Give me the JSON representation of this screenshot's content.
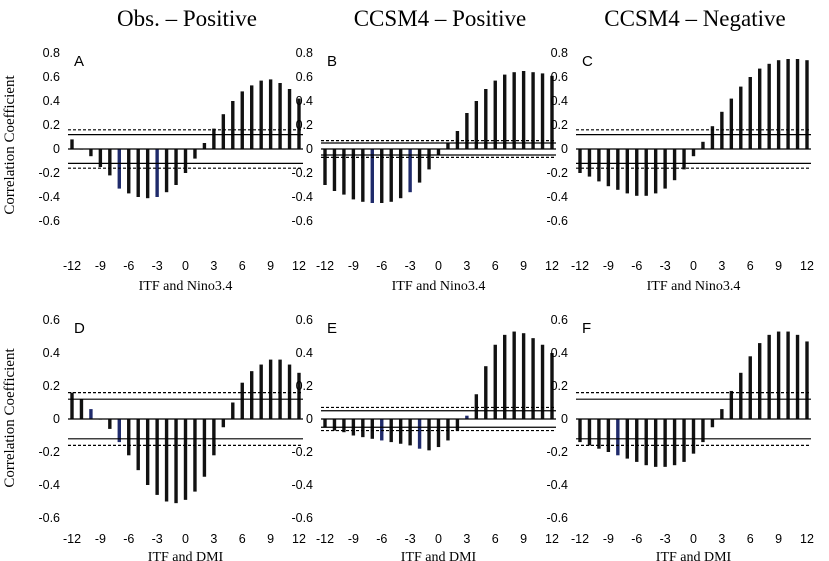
{
  "colors": {
    "bar": "#111111",
    "bar_highlight": "#1f2a6b",
    "line": "#000000"
  },
  "column_titles": [
    "Obs. – Positive",
    "CCSM4 – Positive",
    "CCSM4 – Negative"
  ],
  "ylabel": "Correlation Coefficient",
  "chart_data": [
    {
      "panel": "A",
      "type": "bar",
      "row": 0,
      "col": 0,
      "xlabel": "ITF and Nino3.4",
      "x": [
        -12,
        -11,
        -10,
        -9,
        -8,
        -7,
        -6,
        -5,
        -4,
        -3,
        -2,
        -1,
        0,
        1,
        2,
        3,
        4,
        5,
        6,
        7,
        8,
        9,
        10,
        11,
        12
      ],
      "values": [
        0.08,
        0.0,
        -0.06,
        -0.15,
        -0.22,
        -0.33,
        -0.37,
        -0.4,
        -0.41,
        -0.4,
        -0.36,
        -0.3,
        -0.2,
        -0.08,
        0.05,
        0.17,
        0.29,
        0.4,
        0.48,
        0.53,
        0.57,
        0.58,
        0.55,
        0.5,
        0.42
      ],
      "highlight_x": [
        -7,
        -3
      ],
      "ylim": [
        -0.8,
        0.8
      ],
      "yticks": [
        -0.6,
        -0.4,
        -0.2,
        0,
        0.2,
        0.4,
        0.6,
        0.8
      ],
      "yticklabels": [
        "-0.6",
        "-0.4",
        "-0.2",
        "0",
        "0.2",
        "0.4",
        "0.6",
        "0.8"
      ],
      "xticks": [
        -12,
        -9,
        -6,
        -3,
        0,
        3,
        6,
        9,
        12
      ],
      "xticklabels": [
        "-12",
        "-9",
        "-6",
        "-3",
        "0",
        "3",
        "6",
        "9",
        "12"
      ],
      "solid_thresholds": [
        0.12,
        -0.12
      ],
      "dashed_thresholds": [
        0.16,
        -0.16
      ]
    },
    {
      "panel": "B",
      "type": "bar",
      "row": 0,
      "col": 1,
      "xlabel": "ITF and Nino3.4",
      "x": [
        -12,
        -11,
        -10,
        -9,
        -8,
        -7,
        -6,
        -5,
        -4,
        -3,
        -2,
        -1,
        0,
        1,
        2,
        3,
        4,
        5,
        6,
        7,
        8,
        9,
        10,
        11,
        12
      ],
      "values": [
        -0.3,
        -0.35,
        -0.38,
        -0.42,
        -0.44,
        -0.45,
        -0.45,
        -0.44,
        -0.41,
        -0.36,
        -0.28,
        -0.17,
        -0.05,
        0.05,
        0.15,
        0.3,
        0.4,
        0.5,
        0.57,
        0.62,
        0.64,
        0.65,
        0.64,
        0.63,
        0.61
      ],
      "highlight_x": [
        -7,
        -3
      ],
      "ylim": [
        -0.8,
        0.8
      ],
      "yticks": [
        -0.6,
        -0.4,
        -0.2,
        0,
        0.2,
        0.4,
        0.6,
        0.8
      ],
      "yticklabels": [
        "-0.6",
        "-0.4",
        "-0.2",
        "0",
        "0.2",
        "0.4",
        "0.6",
        "0.8"
      ],
      "xticks": [
        -12,
        -9,
        -6,
        -3,
        0,
        3,
        6,
        9,
        12
      ],
      "xticklabels": [
        "-12",
        "-9",
        "-6",
        "-3",
        "0",
        "3",
        "6",
        "9",
        "12"
      ],
      "solid_thresholds": [
        0.05,
        -0.05
      ],
      "dashed_thresholds": [
        0.07,
        -0.07
      ]
    },
    {
      "panel": "C",
      "type": "bar",
      "row": 0,
      "col": 2,
      "xlabel": "ITF and Nino3.4",
      "x": [
        -12,
        -11,
        -10,
        -9,
        -8,
        -7,
        -6,
        -5,
        -4,
        -3,
        -2,
        -1,
        0,
        1,
        2,
        3,
        4,
        5,
        6,
        7,
        8,
        9,
        10,
        11,
        12
      ],
      "values": [
        -0.2,
        -0.23,
        -0.27,
        -0.31,
        -0.34,
        -0.37,
        -0.39,
        -0.39,
        -0.37,
        -0.33,
        -0.26,
        -0.17,
        -0.06,
        0.06,
        0.19,
        0.31,
        0.42,
        0.52,
        0.6,
        0.67,
        0.71,
        0.74,
        0.75,
        0.75,
        0.74
      ],
      "highlight_x": [],
      "ylim": [
        -0.8,
        0.8
      ],
      "yticks": [
        -0.6,
        -0.4,
        -0.2,
        0,
        0.2,
        0.4,
        0.6,
        0.8
      ],
      "yticklabels": [
        "-0.6",
        "-0.4",
        "-0.2",
        "0",
        "0.2",
        "0.4",
        "0.6",
        "0.8"
      ],
      "xticks": [
        -12,
        -9,
        -6,
        -3,
        0,
        3,
        6,
        9,
        12
      ],
      "xticklabels": [
        "-12",
        "-9",
        "-6",
        "-3",
        "0",
        "3",
        "6",
        "9",
        "12"
      ],
      "solid_thresholds": [
        0.12,
        -0.12
      ],
      "dashed_thresholds": [
        0.16,
        -0.16
      ]
    },
    {
      "panel": "D",
      "type": "bar",
      "row": 1,
      "col": 0,
      "xlabel": "ITF and DMI",
      "x": [
        -12,
        -11,
        -10,
        -9,
        -8,
        -7,
        -6,
        -5,
        -4,
        -3,
        -2,
        -1,
        0,
        1,
        2,
        3,
        4,
        5,
        6,
        7,
        8,
        9,
        10,
        11,
        12
      ],
      "values": [
        0.16,
        0.12,
        0.06,
        0.0,
        -0.06,
        -0.14,
        -0.22,
        -0.31,
        -0.4,
        -0.46,
        -0.5,
        -0.51,
        -0.49,
        -0.44,
        -0.35,
        -0.22,
        -0.05,
        0.1,
        0.22,
        0.29,
        0.33,
        0.36,
        0.36,
        0.33,
        0.28
      ],
      "highlight_x": [
        -10,
        -7
      ],
      "ylim": [
        -0.6,
        0.6
      ],
      "yticks": [
        -0.6,
        -0.4,
        -0.2,
        0,
        0.2,
        0.4,
        0.6
      ],
      "yticklabels": [
        "-0.6",
        "-0.4",
        "-0.2",
        "0",
        "0.2",
        "0.4",
        "0.6"
      ],
      "xticks": [
        -12,
        -9,
        -6,
        -3,
        0,
        3,
        6,
        9,
        12
      ],
      "xticklabels": [
        "-12",
        "-9",
        "-6",
        "-3",
        "0",
        "3",
        "6",
        "9",
        "12"
      ],
      "solid_thresholds": [
        0.12,
        -0.12
      ],
      "dashed_thresholds": [
        0.16,
        -0.16
      ]
    },
    {
      "panel": "E",
      "type": "bar",
      "row": 1,
      "col": 1,
      "xlabel": "ITF and DMI",
      "x": [
        -12,
        -11,
        -10,
        -9,
        -8,
        -7,
        -6,
        -5,
        -4,
        -3,
        -2,
        -1,
        0,
        1,
        2,
        3,
        4,
        5,
        6,
        7,
        8,
        9,
        10,
        11,
        12
      ],
      "values": [
        -0.05,
        -0.07,
        -0.08,
        -0.1,
        -0.11,
        -0.12,
        -0.13,
        -0.14,
        -0.15,
        -0.16,
        -0.18,
        -0.19,
        -0.17,
        -0.13,
        -0.07,
        0.02,
        0.15,
        0.32,
        0.45,
        0.51,
        0.53,
        0.52,
        0.49,
        0.45,
        0.4
      ],
      "highlight_x": [
        -6,
        -2,
        3
      ],
      "ylim": [
        -0.6,
        0.6
      ],
      "yticks": [
        -0.6,
        -0.4,
        -0.2,
        0,
        0.2,
        0.4,
        0.6
      ],
      "yticklabels": [
        "-0.6",
        "-0.4",
        "-0.2",
        "0",
        "0.2",
        "0.4",
        "0.6"
      ],
      "xticks": [
        -12,
        -9,
        -6,
        -3,
        0,
        3,
        6,
        9,
        12
      ],
      "xticklabels": [
        "-12",
        "-9",
        "-6",
        "-3",
        "0",
        "3",
        "6",
        "9",
        "12"
      ],
      "solid_thresholds": [
        0.05,
        -0.05
      ],
      "dashed_thresholds": [
        0.07,
        -0.07
      ]
    },
    {
      "panel": "F",
      "type": "bar",
      "row": 1,
      "col": 2,
      "xlabel": "ITF and DMI",
      "x": [
        -12,
        -11,
        -10,
        -9,
        -8,
        -7,
        -6,
        -5,
        -4,
        -3,
        -2,
        -1,
        0,
        1,
        2,
        3,
        4,
        5,
        6,
        7,
        8,
        9,
        10,
        11,
        12
      ],
      "values": [
        -0.14,
        -0.16,
        -0.18,
        -0.2,
        -0.22,
        -0.24,
        -0.26,
        -0.28,
        -0.29,
        -0.29,
        -0.28,
        -0.26,
        -0.21,
        -0.14,
        -0.05,
        0.06,
        0.17,
        0.28,
        0.38,
        0.46,
        0.51,
        0.53,
        0.53,
        0.51,
        0.47
      ],
      "highlight_x": [
        -8
      ],
      "ylim": [
        -0.6,
        0.6
      ],
      "yticks": [
        -0.6,
        -0.4,
        -0.2,
        0,
        0.2,
        0.4,
        0.6
      ],
      "yticklabels": [
        "-0.6",
        "-0.4",
        "-0.2",
        "0",
        "0.2",
        "0.4",
        "0.6"
      ],
      "xticks": [
        -12,
        -9,
        -6,
        -3,
        0,
        3,
        6,
        9,
        12
      ],
      "xticklabels": [
        "-12",
        "-9",
        "-6",
        "-3",
        "0",
        "3",
        "6",
        "9",
        "12"
      ],
      "solid_thresholds": [
        0.12,
        -0.12
      ],
      "dashed_thresholds": [
        0.16,
        -0.16
      ]
    }
  ]
}
